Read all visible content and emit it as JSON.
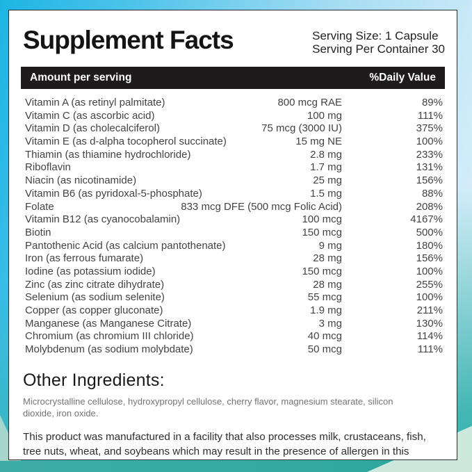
{
  "colors": {
    "frame_cyan": "#1cb5e4",
    "frame_pale_blue": "#d3edf8",
    "frame_teal": "#2eafaa",
    "frame_mint": "#cde8dd",
    "panel_bg": "#ffffff",
    "bar_bg": "#1d1b1c",
    "bar_text": "#ffffff",
    "body_text": "#434343"
  },
  "label": {
    "title": "Supplement Facts",
    "serving_size": "Serving Size: 1 Capsule",
    "servings_per_container": "Serving Per Container 30",
    "table": {
      "header": {
        "left": "Amount per serving",
        "right": "%Daily Value"
      },
      "rows": [
        {
          "name": "Vitamin A (as retinyl palmitate)",
          "amount": "800 mcg RAE",
          "dv": "89%"
        },
        {
          "name": "Vitamin C (as ascorbic acid)",
          "amount": "100 mg",
          "dv": "111%"
        },
        {
          "name": "Vitamin D (as cholecalciferol)",
          "amount": "75 mcg (3000 IU)",
          "dv": "375%"
        },
        {
          "name": "Vitamin E (as d-alpha tocopherol succinate)",
          "amount": "15 mg NE",
          "dv": "100%"
        },
        {
          "name": "Thiamin (as thiamine hydrochloride)",
          "amount": "2.8 mg",
          "dv": "233%"
        },
        {
          "name": "Riboflavin",
          "amount": "1.7 mg",
          "dv": "131%"
        },
        {
          "name": "Niacin (as nicotinamide)",
          "amount": "25 mg",
          "dv": "156%"
        },
        {
          "name": "Vitamin B6 (as pyridoxal-5-phosphate)",
          "amount": "1.5 mg",
          "dv": "88%"
        },
        {
          "name": "Folate",
          "amount": "833 mcg DFE (500 mcg Folic Acid)",
          "dv": "208%"
        },
        {
          "name": "Vitamin B12 (as cyanocobalamin)",
          "amount": "100 mcg",
          "dv": "4167%"
        },
        {
          "name": "Biotin",
          "amount": "150 mcg",
          "dv": "500%"
        },
        {
          "name": "Pantothenic Acid (as calcium pantothenate)",
          "amount": "9 mg",
          "dv": "180%"
        },
        {
          "name": "Iron (as ferrous fumarate)",
          "amount": "28 mg",
          "dv": "156%"
        },
        {
          "name": "Iodine (as potassium iodide)",
          "amount": "150 mcg",
          "dv": "100%"
        },
        {
          "name": "Zinc (as zinc citrate dihydrate)",
          "amount": "28 mg",
          "dv": "255%"
        },
        {
          "name": "Selenium (as sodium selenite)",
          "amount": "55 mcg",
          "dv": "100%"
        },
        {
          "name": "Copper (as copper gluconate)",
          "amount": "1.9 mg",
          "dv": "211%"
        },
        {
          "name": "Manganese (as Manganese Citrate)",
          "amount": "3 mg",
          "dv": "130%"
        },
        {
          "name": "Chromium (as chromium III chloride)",
          "amount": "40 mcg",
          "dv": "114%"
        },
        {
          "name": "Molybdenum (as sodium molybdate)",
          "amount": "50 mcg",
          "dv": "111%"
        }
      ]
    },
    "other_ingredients": {
      "heading": "Other Ingredients:",
      "text": "Microcrystalline cellulose, hydroxypropyl cellulose, cherry flavor, magnesium stearate, silicon dioxide, iron oxide."
    },
    "allergen_statement": "This product was manufactured in a facility that also processes milk, crustaceans, fish, tree nuts, wheat, and soybeans which may result in the presence of allergen in this product."
  }
}
